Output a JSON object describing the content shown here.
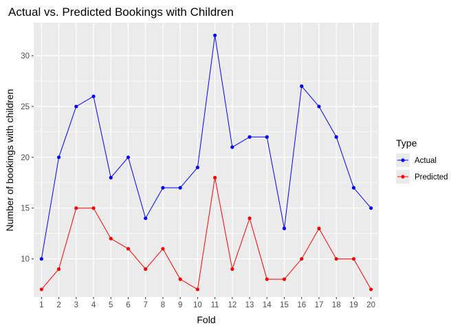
{
  "chart_data": {
    "type": "line",
    "title": "Actual vs. Predicted Bookings with Children",
    "xlabel": "Fold",
    "ylabel": "Number of bookings with children",
    "x": [
      1,
      2,
      3,
      4,
      5,
      6,
      7,
      8,
      9,
      10,
      11,
      12,
      13,
      14,
      15,
      16,
      17,
      18,
      19,
      20
    ],
    "x_tick_labels": [
      "1",
      "2",
      "3",
      "4",
      "5",
      "6",
      "7",
      "8",
      "9",
      "10",
      "11",
      "12",
      "13",
      "14",
      "15",
      "16",
      "17",
      "18",
      "19",
      "20"
    ],
    "y_ticks": [
      10,
      15,
      20,
      25,
      30
    ],
    "y_tick_labels": [
      "10",
      "15",
      "20",
      "25",
      "30"
    ],
    "xlim": [
      0.55,
      20.45
    ],
    "ylim": [
      6.25,
      33.25
    ],
    "grid": true,
    "legend": {
      "title": "Type",
      "placement": "right"
    },
    "series": [
      {
        "name": "Actual",
        "color": "#0000ff",
        "values": [
          10,
          20,
          25,
          26,
          18,
          20,
          14,
          17,
          17,
          19,
          32,
          21,
          22,
          22,
          13,
          27,
          25,
          22,
          17,
          15
        ]
      },
      {
        "name": "Predicted",
        "color": "#ff0000",
        "values": [
          7,
          9,
          15,
          15,
          12,
          11,
          9,
          11,
          8,
          7,
          18,
          9,
          14,
          8,
          8,
          10,
          13,
          10,
          10,
          7
        ]
      }
    ]
  }
}
